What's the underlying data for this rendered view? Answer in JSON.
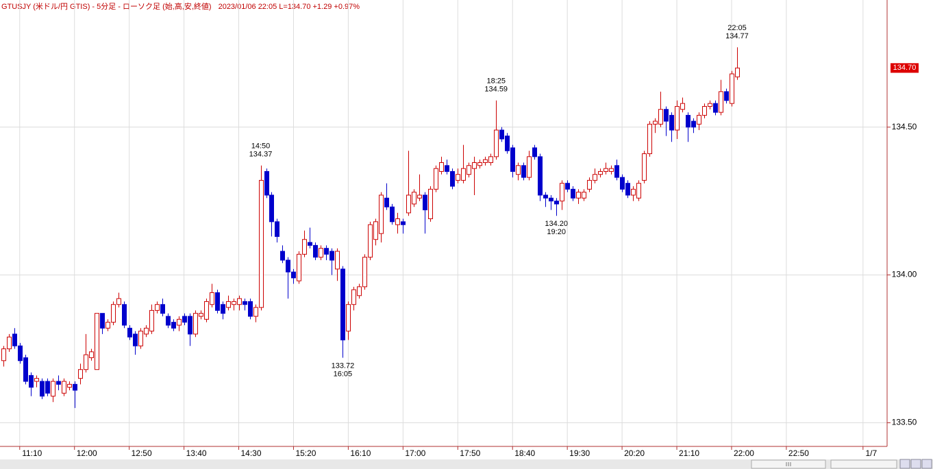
{
  "chart_data": {
    "type": "candlestick",
    "title": "GTUSJY (米ドル/円 GTIS) - 5分足 - ローソク足 (始,高,安,終値)",
    "subtitle": "2023/01/06 22:05 L=134.70 +1.29 +0.97%",
    "x": [
      "10:55",
      "11:00",
      "11:05",
      "11:10",
      "11:15",
      "11:20",
      "11:25",
      "11:30",
      "11:35",
      "11:40",
      "11:45",
      "11:50",
      "11:55",
      "12:00",
      "12:05",
      "12:10",
      "12:15",
      "12:20",
      "12:25",
      "12:30",
      "12:35",
      "12:40",
      "12:45",
      "12:50",
      "12:55",
      "13:00",
      "13:05",
      "13:10",
      "13:15",
      "13:20",
      "13:25",
      "13:30",
      "13:35",
      "13:40",
      "13:45",
      "13:50",
      "13:55",
      "14:00",
      "14:05",
      "14:10",
      "14:15",
      "14:20",
      "14:25",
      "14:30",
      "14:35",
      "14:40",
      "14:45",
      "14:50",
      "14:55",
      "15:00",
      "15:05",
      "15:10",
      "15:15",
      "15:20",
      "15:25",
      "15:30",
      "15:35",
      "15:40",
      "15:45",
      "15:50",
      "15:55",
      "16:00",
      "16:05",
      "16:10",
      "16:15",
      "16:20",
      "16:25",
      "16:30",
      "16:35",
      "16:40",
      "16:45",
      "16:50",
      "16:55",
      "17:00",
      "17:05",
      "17:10",
      "17:15",
      "17:20",
      "17:25",
      "17:30",
      "17:35",
      "17:40",
      "17:45",
      "17:50",
      "17:55",
      "18:00",
      "18:05",
      "18:10",
      "18:15",
      "18:20",
      "18:25",
      "18:30",
      "18:35",
      "18:40",
      "18:45",
      "18:50",
      "18:55",
      "19:00",
      "19:05",
      "19:10",
      "19:15",
      "19:20",
      "19:25",
      "19:30",
      "19:35",
      "19:40",
      "19:45",
      "19:50",
      "19:55",
      "20:00",
      "20:05",
      "20:10",
      "20:15",
      "20:20",
      "20:25",
      "20:30",
      "20:35",
      "20:40",
      "20:45",
      "20:50",
      "20:55",
      "21:00",
      "21:05",
      "21:10",
      "21:15",
      "21:20",
      "21:25",
      "21:30",
      "21:35",
      "21:40",
      "21:45",
      "21:50",
      "21:55",
      "22:00",
      "22:05"
    ],
    "open": [
      133.71,
      133.75,
      133.8,
      133.76,
      133.72,
      133.66,
      133.64,
      133.64,
      133.64,
      133.59,
      133.64,
      133.6,
      133.62,
      133.63,
      133.65,
      133.68,
      133.72,
      133.68,
      133.87,
      133.82,
      133.84,
      133.9,
      133.9,
      133.82,
      133.8,
      133.76,
      133.8,
      133.81,
      133.88,
      133.9,
      133.86,
      133.84,
      133.83,
      133.86,
      133.86,
      133.8,
      133.86,
      133.85,
      133.9,
      133.94,
      133.9,
      133.89,
      133.9,
      133.9,
      133.91,
      133.91,
      133.86,
      133.89,
      134.35,
      134.27,
      134.18,
      134.08,
      134.05,
      134.01,
      133.98,
      134.07,
      134.11,
      134.1,
      134.06,
      134.09,
      134.08,
      134.02,
      134.02,
      133.81,
      133.9,
      133.93,
      133.96,
      134.06,
      134.12,
      134.14,
      134.26,
      134.23,
      134.17,
      134.18,
      134.21,
      134.24,
      134.26,
      134.27,
      134.19,
      134.29,
      134.35,
      134.37,
      134.35,
      134.32,
      134.32,
      134.34,
      134.36,
      134.37,
      134.38,
      134.38,
      134.4,
      134.49,
      134.47,
      134.43,
      134.34,
      134.37,
      134.33,
      134.43,
      134.4,
      134.27,
      134.26,
      134.25,
      134.25,
      134.31,
      134.29,
      134.26,
      134.26,
      134.29,
      134.32,
      134.34,
      134.35,
      134.35,
      134.37,
      134.33,
      134.31,
      134.27,
      134.26,
      134.32,
      134.41,
      134.51,
      134.51,
      134.56,
      134.54,
      134.49,
      134.56,
      134.54,
      134.52,
      134.51,
      134.54,
      134.57,
      134.58,
      134.55,
      134.62,
      134.58,
      134.67
    ],
    "high": [
      133.76,
      133.8,
      133.82,
      133.77,
      133.73,
      133.67,
      133.66,
      133.65,
      133.65,
      133.65,
      133.66,
      133.65,
      133.64,
      133.64,
      133.7,
      133.8,
      133.75,
      133.87,
      133.87,
      133.85,
      133.91,
      133.94,
      133.91,
      133.83,
      133.81,
      133.82,
      133.83,
      133.9,
      133.91,
      133.92,
      133.87,
      133.85,
      133.86,
      133.87,
      133.87,
      133.88,
      133.88,
      133.92,
      133.97,
      133.95,
      133.91,
      133.93,
      133.92,
      133.93,
      133.92,
      133.92,
      133.9,
      134.37,
      134.36,
      134.28,
      134.19,
      134.1,
      134.06,
      134.02,
      134.08,
      134.15,
      134.16,
      134.11,
      134.1,
      134.1,
      134.09,
      134.09,
      134.03,
      133.91,
      133.96,
      133.97,
      134.07,
      134.18,
      134.19,
      134.28,
      134.31,
      134.24,
      134.21,
      134.19,
      134.42,
      134.29,
      134.34,
      134.28,
      134.3,
      134.37,
      134.4,
      134.39,
      134.36,
      134.36,
      134.44,
      134.38,
      134.4,
      134.39,
      134.4,
      134.41,
      134.59,
      134.5,
      134.48,
      134.44,
      134.38,
      134.38,
      134.42,
      134.44,
      134.41,
      134.28,
      134.27,
      134.26,
      134.32,
      134.32,
      134.3,
      134.29,
      134.29,
      134.33,
      134.36,
      134.36,
      134.38,
      134.37,
      134.39,
      134.34,
      134.32,
      134.3,
      134.32,
      134.42,
      134.52,
      134.53,
      134.62,
      134.57,
      134.55,
      134.59,
      134.6,
      134.55,
      134.53,
      134.55,
      134.58,
      134.59,
      134.59,
      134.66,
      134.63,
      134.69,
      134.77
    ],
    "low": [
      133.69,
      133.74,
      133.75,
      133.7,
      133.63,
      133.59,
      133.62,
      133.58,
      133.59,
      133.57,
      133.61,
      133.59,
      133.61,
      133.55,
      133.63,
      133.67,
      133.71,
      133.68,
      133.8,
      133.81,
      133.83,
      133.89,
      133.82,
      133.78,
      133.73,
      133.75,
      133.79,
      133.8,
      133.87,
      133.86,
      133.82,
      133.81,
      133.81,
      133.83,
      133.76,
      133.79,
      133.85,
      133.84,
      133.89,
      133.87,
      133.85,
      133.88,
      133.88,
      133.88,
      133.88,
      133.85,
      133.84,
      133.88,
      134.26,
      134.13,
      134.11,
      134.04,
      133.92,
      133.97,
      133.97,
      134.06,
      134.09,
      134.05,
      134.05,
      134.05,
      134.0,
      133.98,
      133.72,
      133.78,
      133.88,
      133.92,
      133.95,
      134.05,
      134.1,
      134.11,
      134.22,
      134.17,
      134.14,
      134.14,
      134.2,
      134.23,
      134.25,
      134.14,
      134.18,
      134.28,
      134.34,
      134.34,
      134.29,
      134.31,
      134.31,
      134.33,
      134.27,
      134.36,
      134.37,
      134.37,
      134.39,
      134.45,
      134.41,
      134.33,
      134.32,
      134.32,
      134.32,
      134.39,
      134.25,
      134.23,
      134.22,
      134.2,
      134.22,
      134.28,
      134.25,
      134.24,
      134.25,
      134.28,
      134.31,
      134.33,
      134.34,
      134.34,
      134.32,
      134.28,
      134.26,
      134.25,
      134.25,
      134.31,
      134.4,
      134.48,
      134.5,
      134.47,
      134.45,
      134.46,
      134.55,
      134.45,
      134.48,
      134.49,
      134.53,
      134.56,
      134.54,
      134.54,
      134.58,
      134.57,
      134.66
    ],
    "close": [
      133.75,
      133.79,
      133.76,
      133.71,
      133.64,
      133.62,
      133.65,
      133.59,
      133.6,
      133.64,
      133.63,
      133.64,
      133.63,
      133.61,
      133.68,
      133.73,
      133.74,
      133.87,
      133.82,
      133.84,
      133.9,
      133.92,
      133.83,
      133.79,
      133.76,
      133.81,
      133.82,
      133.88,
      133.9,
      133.87,
      133.83,
      133.82,
      133.85,
      133.84,
      133.8,
      133.87,
      133.87,
      133.91,
      133.94,
      133.88,
      133.87,
      133.91,
      133.91,
      133.92,
      133.9,
      133.86,
      133.89,
      134.32,
      134.27,
      134.18,
      134.13,
      134.05,
      134.01,
      133.99,
      134.07,
      134.12,
      134.1,
      134.06,
      134.09,
      134.07,
      134.05,
      134.08,
      133.78,
      133.9,
      133.95,
      133.96,
      134.06,
      134.17,
      134.18,
      134.27,
      134.23,
      134.18,
      134.19,
      134.17,
      134.27,
      134.28,
      134.27,
      134.22,
      134.29,
      134.36,
      134.38,
      134.35,
      134.3,
      134.34,
      134.36,
      134.37,
      134.38,
      134.38,
      134.39,
      134.4,
      134.49,
      134.46,
      134.42,
      134.35,
      134.37,
      134.33,
      134.4,
      134.4,
      134.27,
      134.26,
      134.25,
      134.24,
      134.31,
      134.29,
      134.26,
      134.28,
      134.28,
      134.32,
      134.34,
      134.35,
      134.36,
      134.36,
      134.33,
      134.29,
      134.27,
      134.29,
      134.31,
      134.41,
      134.51,
      134.52,
      134.56,
      134.52,
      134.49,
      134.57,
      134.58,
      134.5,
      134.5,
      134.54,
      134.57,
      134.58,
      134.55,
      134.62,
      134.59,
      134.68,
      134.7
    ],
    "up_color": "#cc0000",
    "down_color": "#0000cc",
    "xlim": [
      "10:52",
      "24:22"
    ],
    "xticks": [
      "11:10",
      "12:00",
      "12:50",
      "13:40",
      "14:30",
      "15:20",
      "16:10",
      "17:00",
      "17:50",
      "18:40",
      "19:30",
      "20:20",
      "21:10",
      "22:00",
      "22:50",
      {
        "value": "24:00",
        "label": "1/7"
      }
    ],
    "ylim": [
      133.42,
      134.93
    ],
    "yticks": [
      {
        "value": 133.5,
        "label": "133.50"
      },
      {
        "value": 134,
        "label": "134.00"
      },
      {
        "value": 134.5,
        "label": "134.50"
      }
    ],
    "grid": true,
    "annotations": [
      {
        "x": "14:50",
        "y": 134.37,
        "label": "134.37",
        "position": "above"
      },
      {
        "x": "16:05",
        "y": 133.72,
        "label": "133.72",
        "position": "below"
      },
      {
        "x": "18:25",
        "y": 134.59,
        "label": "134.59",
        "position": "above"
      },
      {
        "x": "19:20",
        "y": 134.2,
        "label": "134.20",
        "position": "below"
      },
      {
        "x": "22:05",
        "y": 134.77,
        "label": "134.77",
        "position": "above"
      }
    ],
    "last": {
      "value": 134.7,
      "label": "134.70",
      "color": "#dd0000"
    }
  }
}
